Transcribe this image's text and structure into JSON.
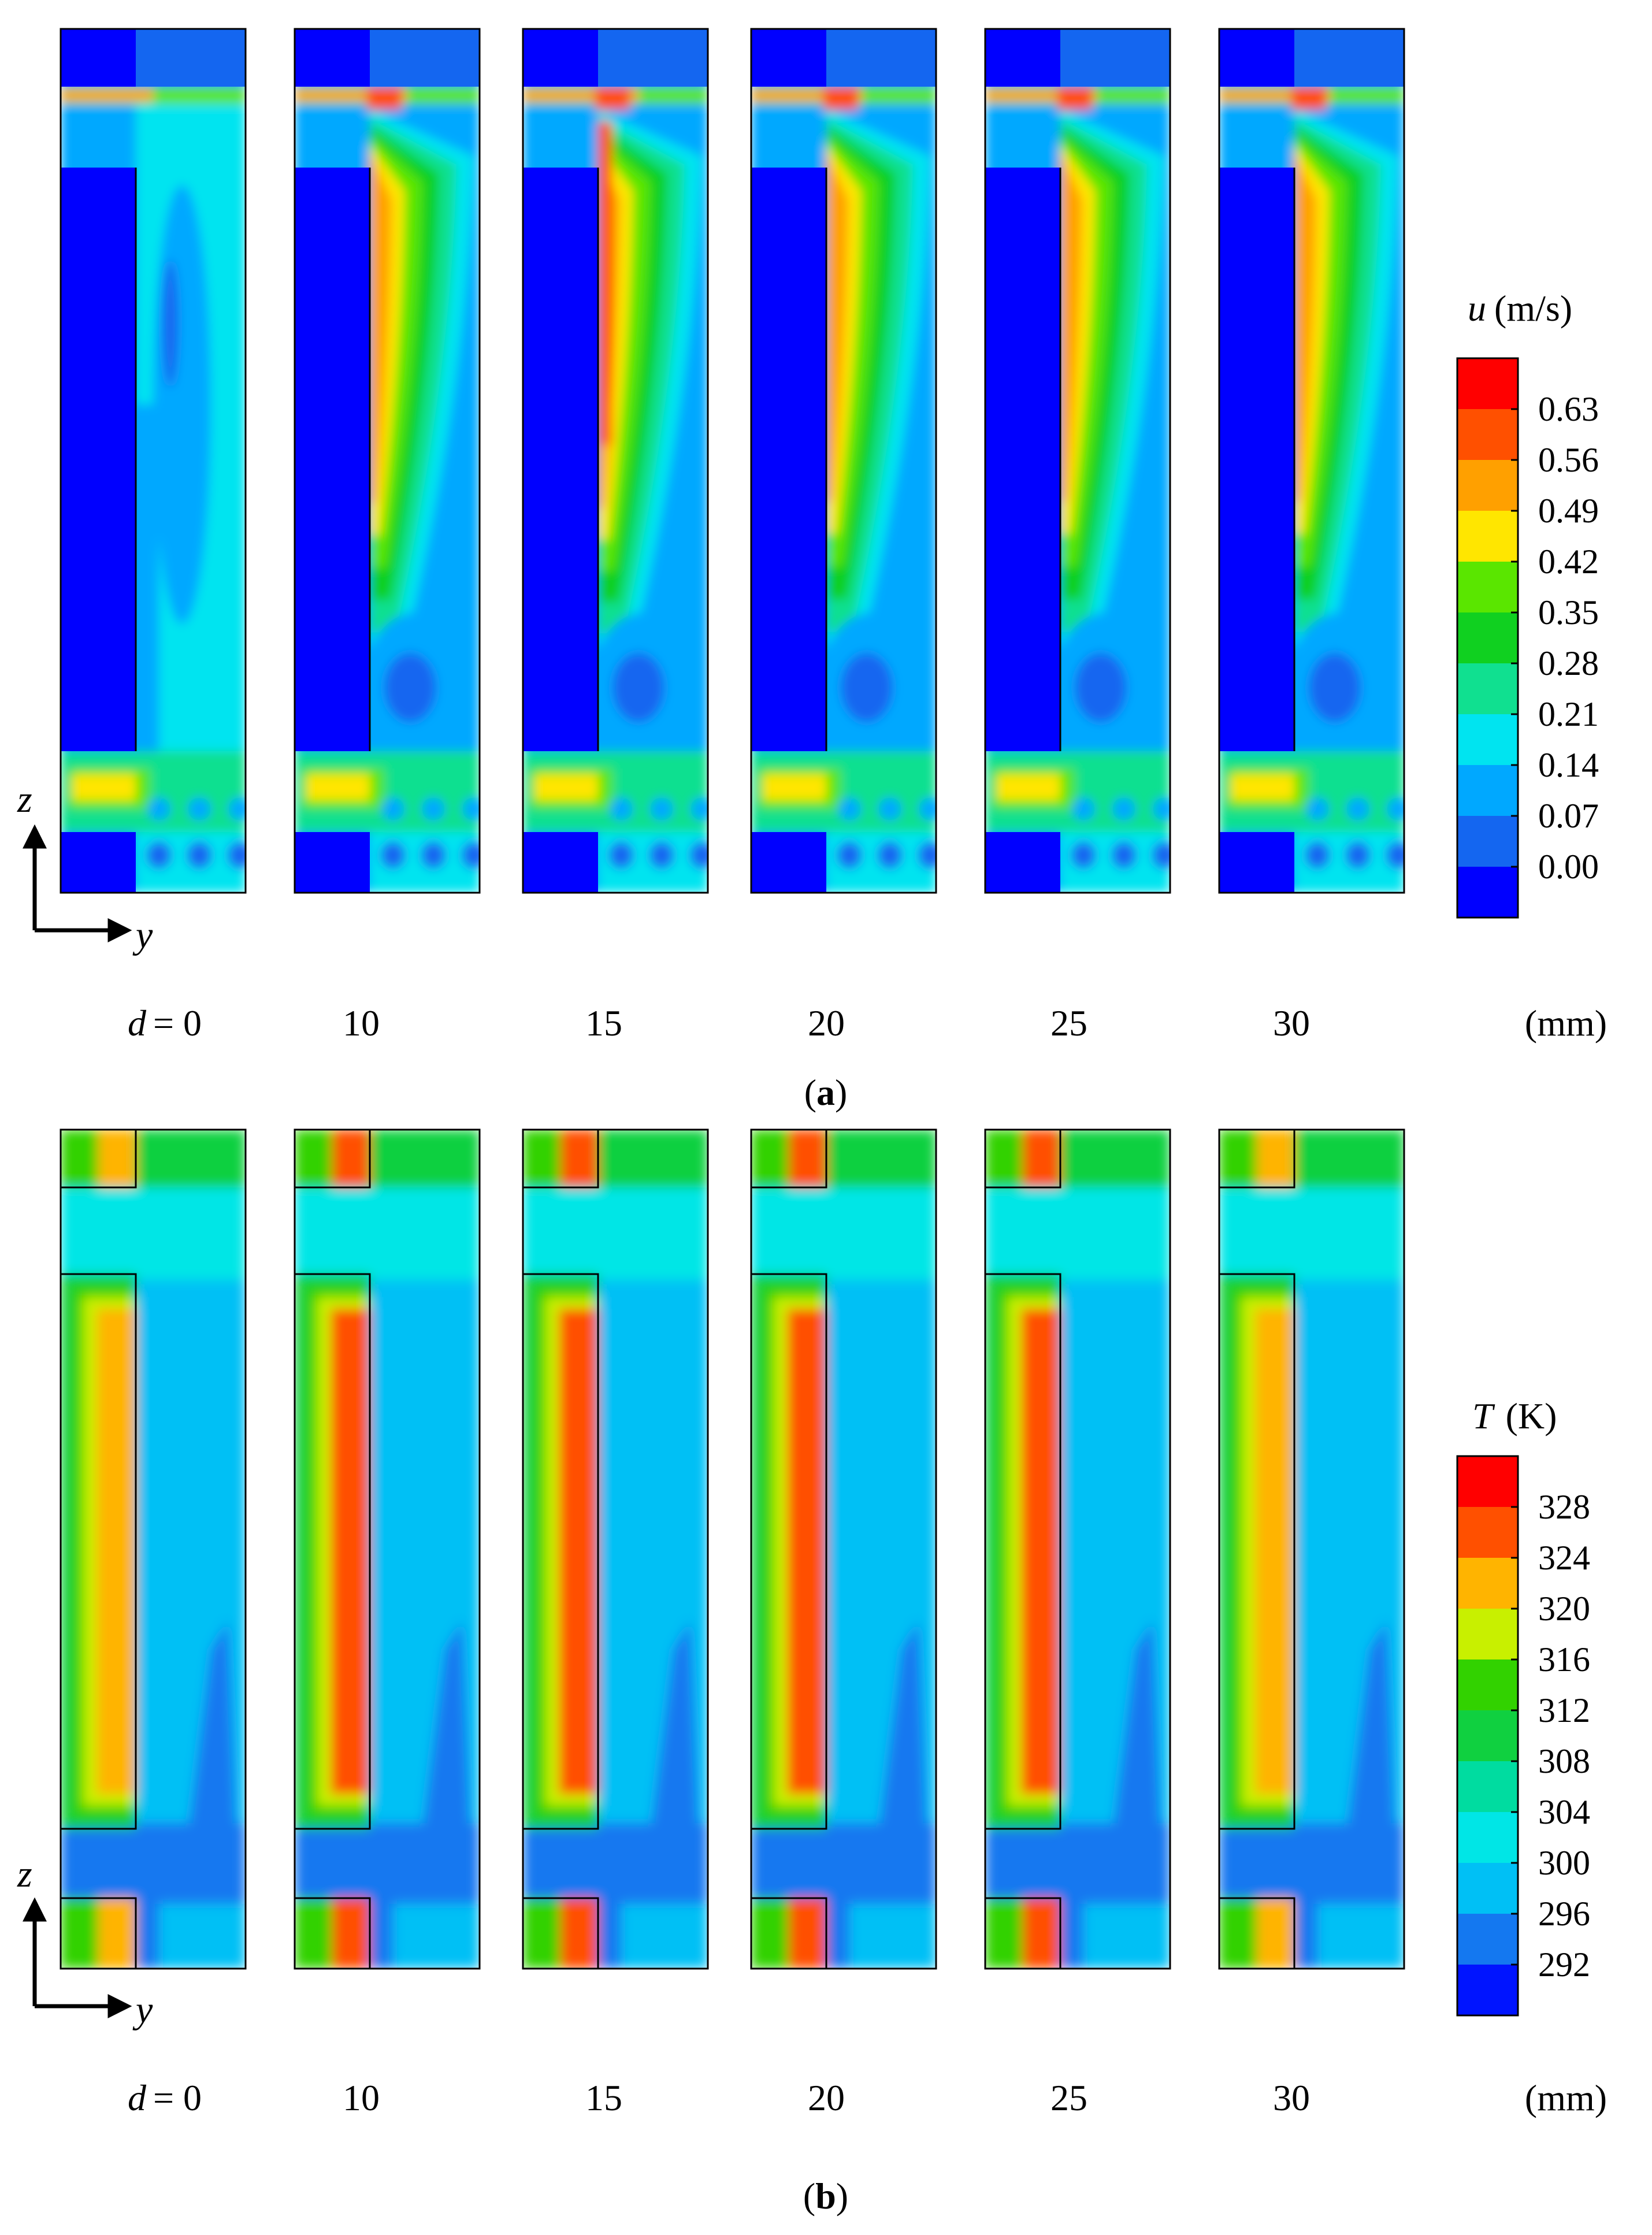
{
  "chart_data": [
    {
      "type": "heatmap",
      "panel_label": "a",
      "quantity_symbol": "u",
      "quantity_unit": "(m/s)",
      "colorbar_ticks": [
        "0.63",
        "0.56",
        "0.49",
        "0.42",
        "0.35",
        "0.28",
        "0.21",
        "0.14",
        "0.07",
        "0.00"
      ],
      "colorbar_colors": [
        "#ff0000",
        "#ff5000",
        "#ffa000",
        "#ffe600",
        "#5ae600",
        "#10d020",
        "#10e090",
        "#00e4f0",
        "#00a8ff",
        "#1466f0",
        "#0000ff"
      ],
      "d_label_prefix": "d",
      "d_values": [
        "= 0",
        "10",
        "15",
        "20",
        "25",
        "30"
      ],
      "d_unit": "(mm)",
      "axis_z": "z",
      "axis_y": "y"
    },
    {
      "type": "heatmap",
      "panel_label": "b",
      "quantity_symbol": "T",
      "quantity_unit": "(K)",
      "colorbar_ticks": [
        "328",
        "324",
        "320",
        "316",
        "312",
        "308",
        "304",
        "300",
        "296",
        "292"
      ],
      "colorbar_colors": [
        "#ff0000",
        "#ff5000",
        "#ffb400",
        "#c8f000",
        "#32d200",
        "#10d040",
        "#00dca0",
        "#00e6e6",
        "#00c0f5",
        "#1478f0",
        "#0014ff"
      ],
      "d_label_prefix": "d",
      "d_values": [
        "= 0",
        "10",
        "15",
        "20",
        "25",
        "30"
      ],
      "d_unit": "(mm)",
      "axis_z": "z",
      "axis_y": "y"
    }
  ]
}
